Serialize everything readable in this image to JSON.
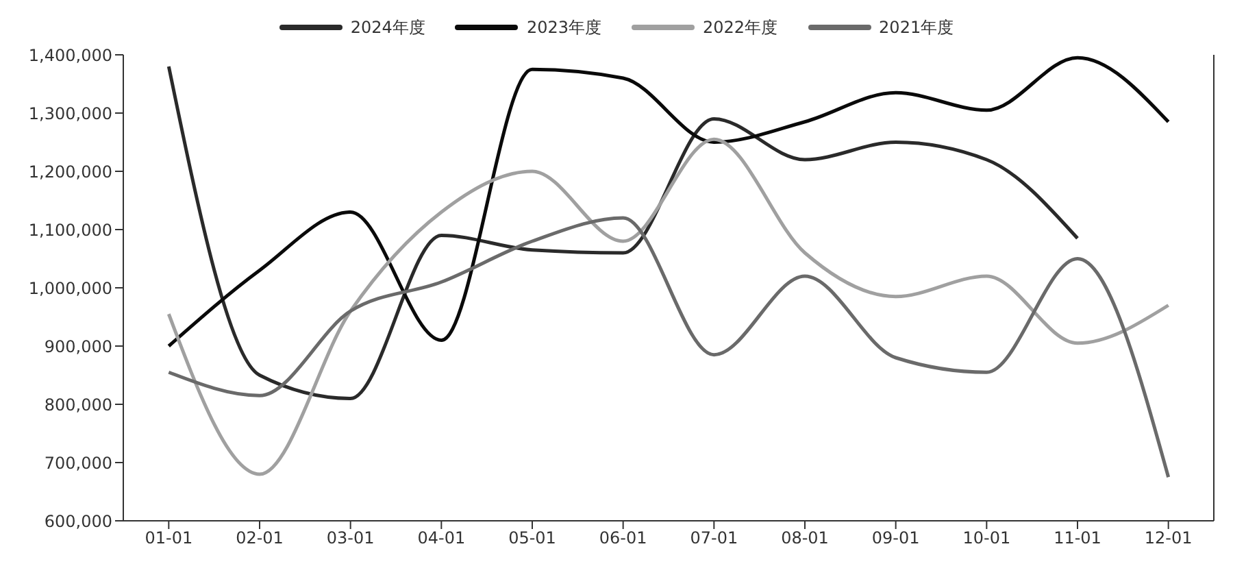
{
  "chart_data": {
    "type": "line",
    "categories": [
      "01-01",
      "02-01",
      "03-01",
      "04-01",
      "05-01",
      "06-01",
      "07-01",
      "08-01",
      "09-01",
      "10-01",
      "11-01",
      "12-01"
    ],
    "series": [
      {
        "name": "2024年度",
        "color": "#2a2a2a",
        "values": [
          1380000,
          850000,
          810000,
          1090000,
          1065000,
          1060000,
          1290000,
          1220000,
          1250000,
          1220000,
          1085000,
          null
        ]
      },
      {
        "name": "2023年度",
        "color": "#0a0a0a",
        "values": [
          900000,
          1030000,
          1130000,
          910000,
          1375000,
          1360000,
          1250000,
          1285000,
          1335000,
          1305000,
          1395000,
          1285000
        ]
      },
      {
        "name": "2022年度",
        "color": "#a0a0a0",
        "values": [
          955000,
          680000,
          960000,
          1130000,
          1200000,
          1080000,
          1255000,
          1060000,
          985000,
          1020000,
          905000,
          970000
        ]
      },
      {
        "name": "2021年度",
        "color": "#6a6a6a",
        "values": [
          855000,
          815000,
          960000,
          1010000,
          1080000,
          1120000,
          885000,
          1020000,
          880000,
          855000,
          1050000,
          675000
        ]
      }
    ],
    "ylim": [
      600000,
      1400000
    ],
    "yticks": [
      {
        "value": 600000,
        "label": "600,000"
      },
      {
        "value": 700000,
        "label": "700,000"
      },
      {
        "value": 800000,
        "label": "800,000"
      },
      {
        "value": 900000,
        "label": "900,000"
      },
      {
        "value": 1000000,
        "label": "1,000,000"
      },
      {
        "value": 1100000,
        "label": "1,100,000"
      },
      {
        "value": 1200000,
        "label": "1,200,000"
      },
      {
        "value": 1300000,
        "label": "1,300,000"
      },
      {
        "value": 1400000,
        "label": "1,400,000"
      }
    ],
    "legend": "top",
    "marker": "none",
    "line_style": "solid"
  }
}
